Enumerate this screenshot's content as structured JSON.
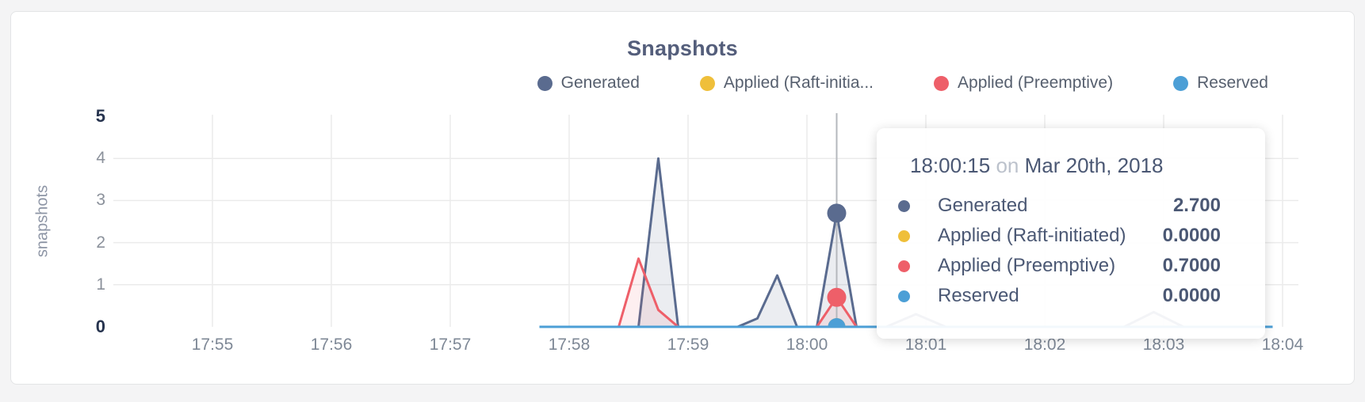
{
  "card": {
    "title": "Snapshots"
  },
  "axes": {
    "y_label": "snapshots",
    "y_ticks": [
      0,
      1,
      2,
      3,
      4,
      5
    ],
    "x_ticks": [
      "17:55",
      "17:56",
      "17:57",
      "17:58",
      "17:59",
      "18:00",
      "18:01",
      "18:02",
      "18:03",
      "18:04"
    ]
  },
  "legend": {
    "items": [
      {
        "label": "Generated",
        "color": "#5a6b8f"
      },
      {
        "label": "Applied (Raft-initia...",
        "color": "#efbf3a"
      },
      {
        "label": "Applied (Preemptive)",
        "color": "#ee5f69"
      },
      {
        "label": "Reserved",
        "color": "#4c9fd6"
      }
    ]
  },
  "chart_data": {
    "type": "area",
    "title": "Snapshots",
    "xlabel": "",
    "ylabel": "snapshots",
    "ylim": [
      0,
      5
    ],
    "grid": true,
    "legend_position": "top-right",
    "x_tick_labels": [
      "17:55",
      "17:56",
      "17:57",
      "17:58",
      "17:59",
      "18:00",
      "18:01",
      "18:02",
      "18:03",
      "18:04"
    ],
    "y_tick_labels": [
      0,
      1,
      2,
      3,
      4,
      5
    ],
    "series": [
      {
        "name": "Generated",
        "color": "#5a6b8f",
        "fill": "rgba(90,107,143,0.12)",
        "points": [
          [
            "17:57:45",
            0
          ],
          [
            "17:58:35",
            0
          ],
          [
            "17:58:45",
            4.0
          ],
          [
            "17:58:55",
            0
          ],
          [
            "17:59:25",
            0
          ],
          [
            "17:59:35",
            0.2
          ],
          [
            "17:59:45",
            1.22
          ],
          [
            "17:59:55",
            0
          ],
          [
            "18:00:05",
            0
          ],
          [
            "18:00:15",
            2.7
          ],
          [
            "18:00:25",
            0
          ],
          [
            "18:00:40",
            0
          ],
          [
            "18:00:55",
            0.3
          ],
          [
            "18:01:10",
            0
          ],
          [
            "18:02:40",
            0
          ],
          [
            "18:02:55",
            0.35
          ],
          [
            "18:03:10",
            0
          ],
          [
            "18:03:55",
            0
          ]
        ]
      },
      {
        "name": "Applied (Raft-initiated)",
        "color": "#efbf3a",
        "fill": null,
        "points": [
          [
            "17:57:45",
            0
          ],
          [
            "18:03:55",
            0
          ]
        ]
      },
      {
        "name": "Applied (Preemptive)",
        "color": "#ee5f69",
        "fill": "rgba(238,95,105,0.10)",
        "points": [
          [
            "17:57:45",
            0
          ],
          [
            "17:58:25",
            0
          ],
          [
            "17:58:35",
            1.62
          ],
          [
            "17:58:45",
            0.4
          ],
          [
            "17:58:55",
            0
          ],
          [
            "18:00:05",
            0
          ],
          [
            "18:00:15",
            0.7
          ],
          [
            "18:00:25",
            0
          ],
          [
            "18:03:55",
            0
          ]
        ]
      },
      {
        "name": "Reserved",
        "color": "#4c9fd6",
        "fill": null,
        "points": [
          [
            "17:57:45",
            0
          ],
          [
            "18:03:55",
            0
          ]
        ]
      }
    ],
    "hover": {
      "time": "18:00:15",
      "values": [
        2.7,
        0,
        0.7,
        0
      ]
    }
  },
  "tooltip": {
    "time": "18:00:15",
    "conj": "on",
    "date": "Mar 20th, 2018",
    "rows": [
      {
        "label": "Generated",
        "color": "#5a6b8f",
        "value": "2.700"
      },
      {
        "label": "Applied (Raft-initiated)",
        "color": "#efbf3a",
        "value": "0.0000"
      },
      {
        "label": "Applied (Preemptive)",
        "color": "#ee5f69",
        "value": "0.7000"
      },
      {
        "label": "Reserved",
        "color": "#4c9fd6",
        "value": "0.0000"
      }
    ]
  }
}
